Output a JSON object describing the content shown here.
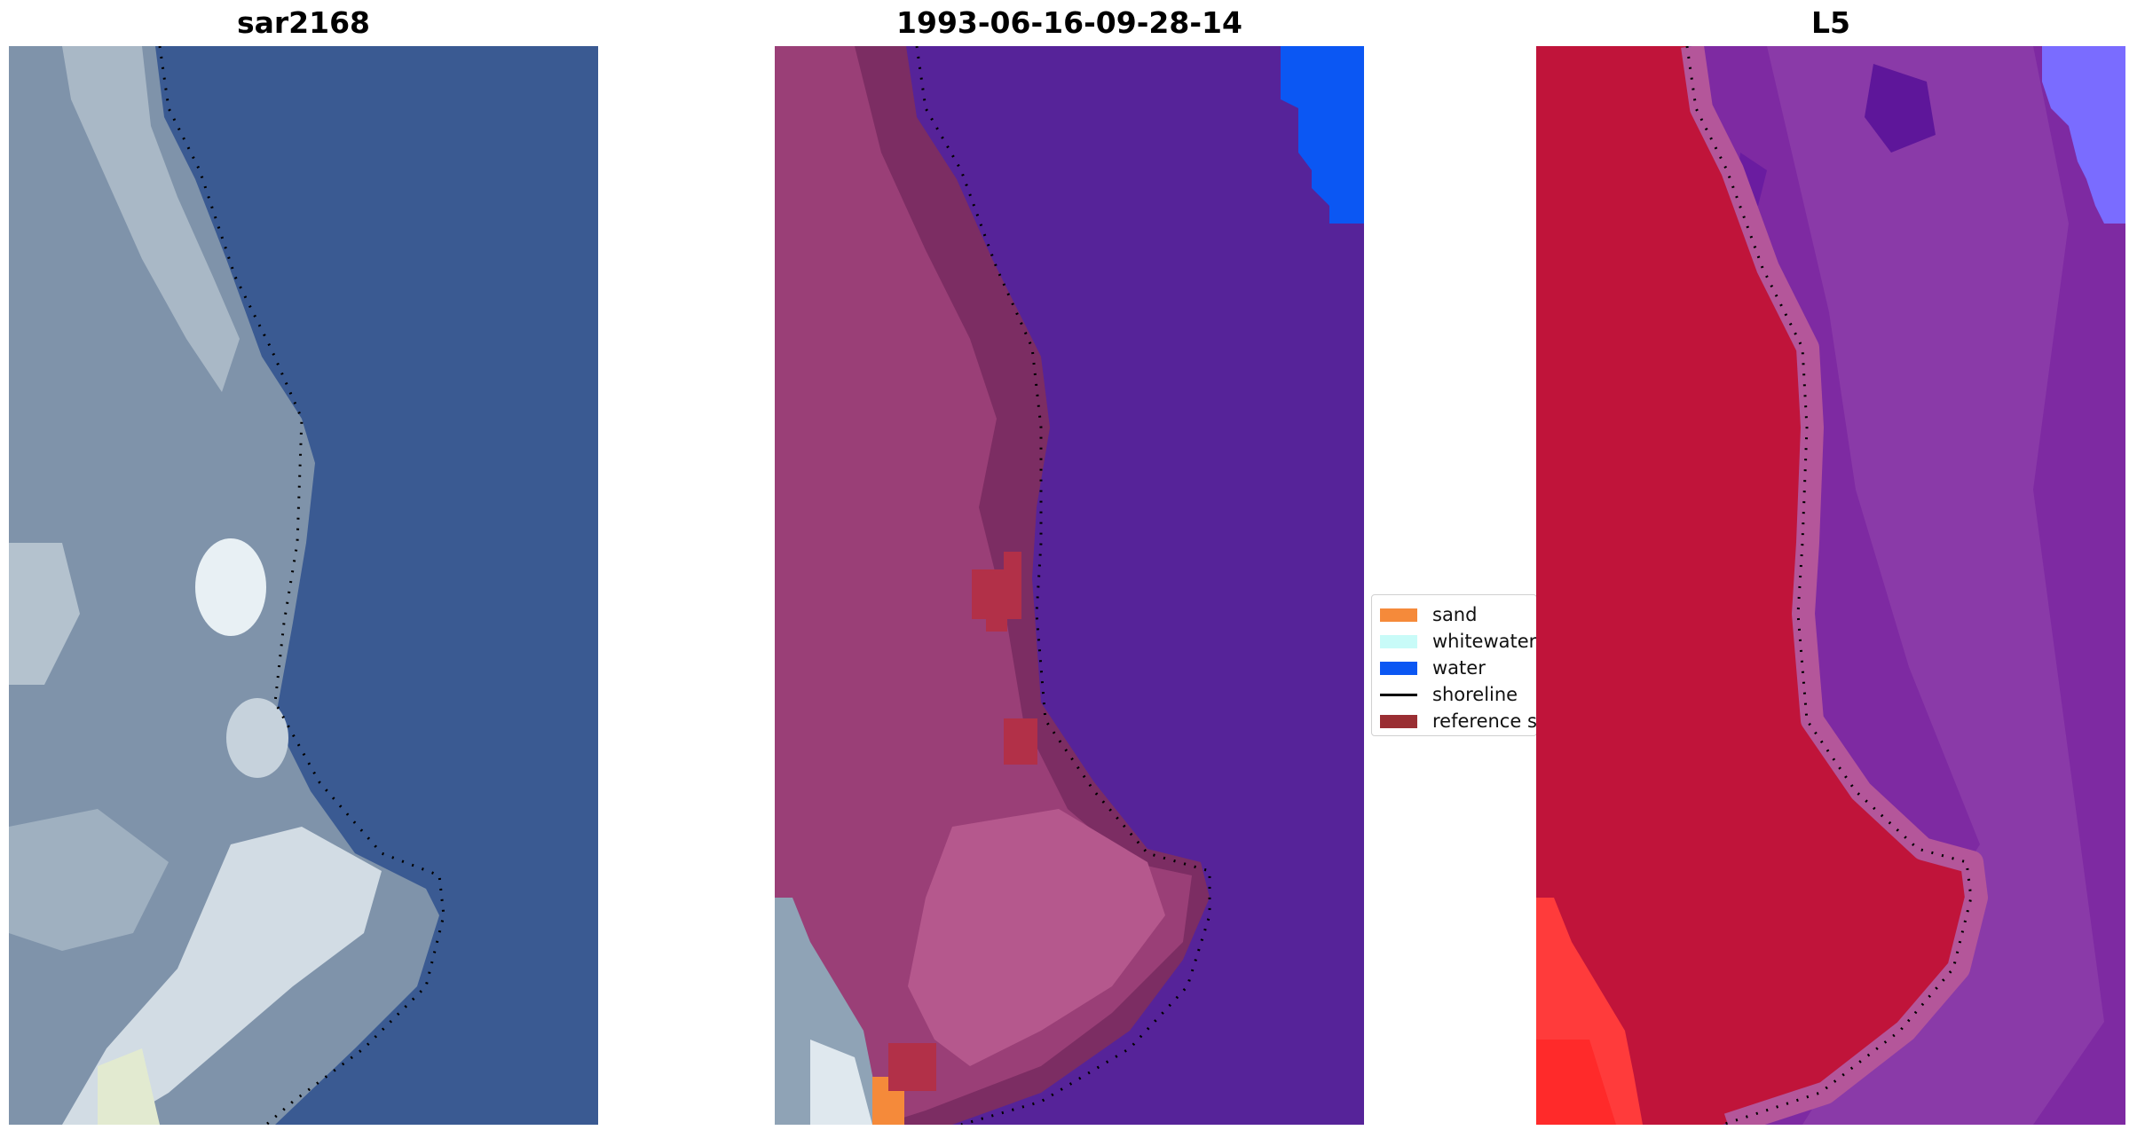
{
  "panels": [
    {
      "title": "sar2168"
    },
    {
      "title": "1993-06-16-09-28-14"
    },
    {
      "title": "L5"
    }
  ],
  "legend": {
    "items": [
      {
        "label": "sand",
        "color": "#f58a3a",
        "kind": "patch"
      },
      {
        "label": "whitewater",
        "color": "#c8fbf8",
        "kind": "patch"
      },
      {
        "label": "water",
        "color": "#0b57f3",
        "kind": "patch"
      },
      {
        "label": "shoreline",
        "color": "#000000",
        "kind": "line"
      },
      {
        "label": "reference s",
        "color": "#9a2e33",
        "kind": "patch"
      }
    ]
  },
  "colors": {
    "rgb_water": "#3a5a92",
    "rgb_land": "#8a9cb0",
    "rgb_bright": "#e6eef2",
    "class_water": "#562399",
    "class_land": "#7c2d63",
    "class_land_light": "#a24a82",
    "class_reference": "#b23048",
    "class_blue": "#0b57f3",
    "mndwi_land": "#c0143a",
    "mndwi_water": "#7e2aa2",
    "mndwi_edge": "#b4569a",
    "mndwi_bright_red": "#ff3b3b",
    "mndwi_blue": "#7a6cff"
  }
}
